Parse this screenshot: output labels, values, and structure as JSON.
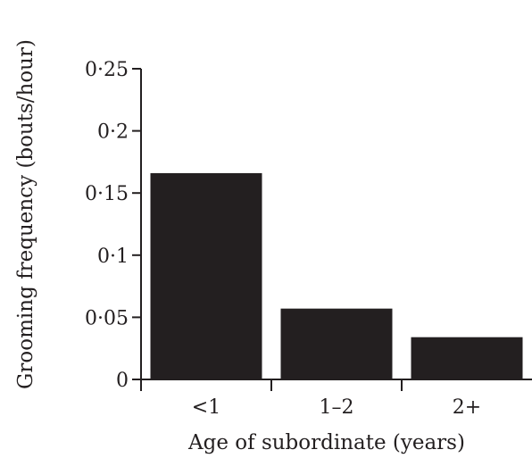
{
  "chart_data": {
    "type": "bar",
    "categories": [
      "<1",
      "1–2",
      "2+"
    ],
    "values": [
      0.166,
      0.057,
      0.034
    ],
    "ylim": [
      0,
      0.25
    ],
    "yticks": [
      0,
      0.05,
      0.1,
      0.15,
      0.2,
      0.25
    ],
    "ytick_labels": [
      "0",
      "0·05",
      "0·1",
      "0·15",
      "0·2",
      "0·25"
    ],
    "xlabel": "Age of subordinate (years)",
    "ylabel": "Grooming frequency (bouts/hour)",
    "bar_color": "#231f20",
    "grid": false,
    "legend": "none"
  }
}
